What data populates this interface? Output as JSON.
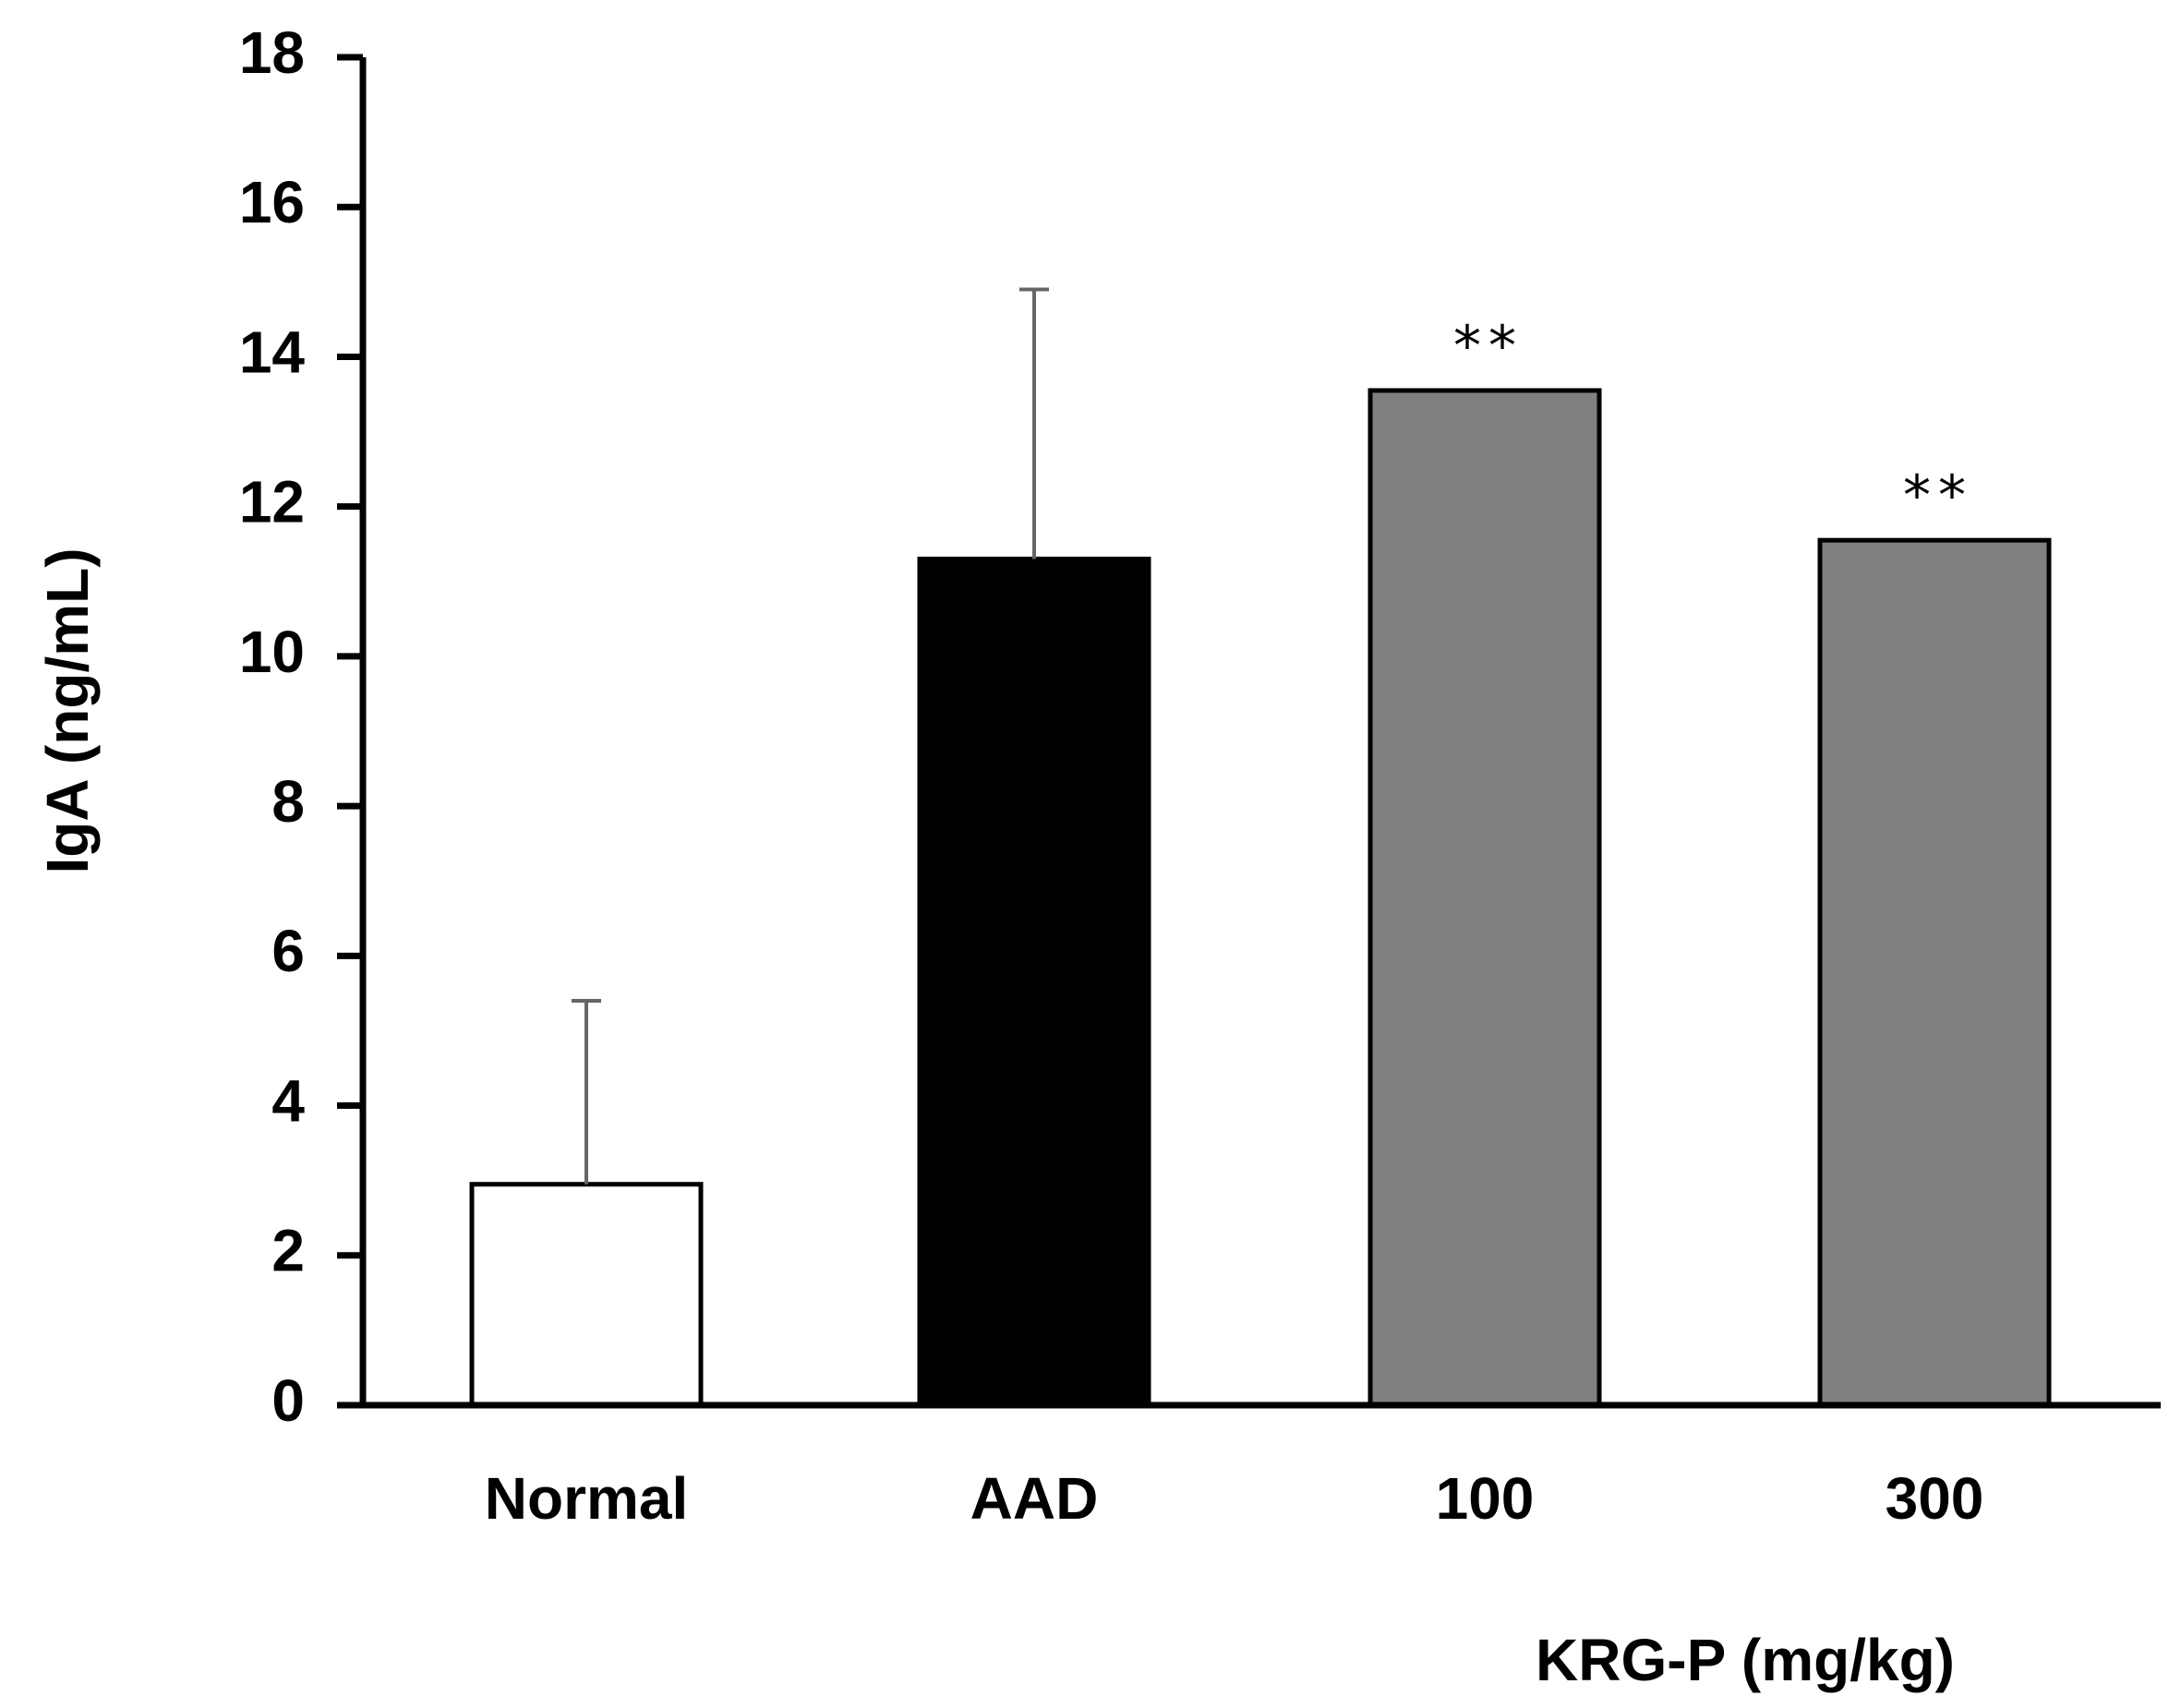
{
  "chart_data": {
    "type": "bar",
    "title": "",
    "xlabel": "KRG-P (mg/kg)",
    "ylabel": "IgA (ng/mL)",
    "ylim": [
      0,
      18
    ],
    "yticks": [
      0,
      2,
      4,
      6,
      8,
      10,
      12,
      14,
      16,
      18
    ],
    "ytick_labels": [
      "0",
      "2",
      "4",
      "6",
      "8",
      "10",
      "12",
      "14",
      "16",
      "18"
    ],
    "categories": [
      "Normal",
      "AAD",
      "100",
      "300"
    ],
    "values": [
      2.95,
      11.3,
      13.55,
      11.55
    ],
    "error_upper": [
      5.4,
      14.9,
      null,
      null
    ],
    "significance": [
      "",
      "",
      "**",
      "**"
    ],
    "bar_colors": [
      "#ffffff",
      "#000000",
      "#808080",
      "#808080"
    ],
    "grid": false,
    "legend": null
  }
}
